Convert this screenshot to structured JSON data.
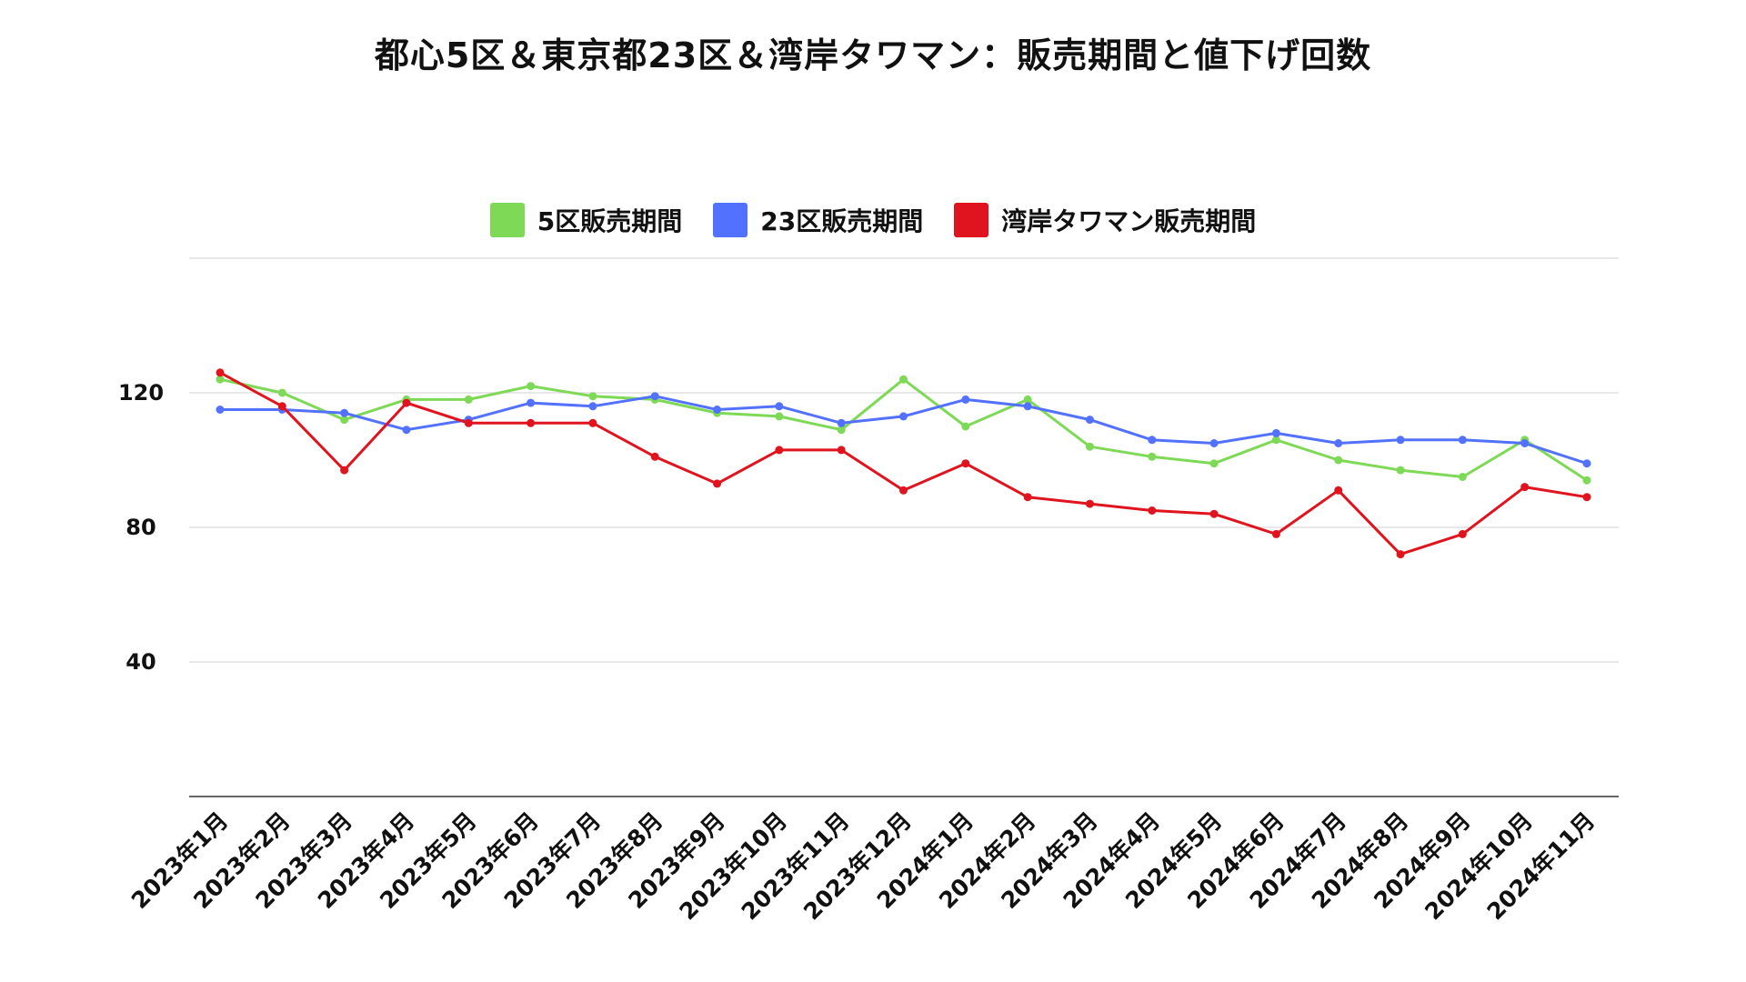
{
  "chart_data": {
    "type": "line",
    "title": "都心5区＆東京都23区＆湾岸タワマン：販売期間と値下げ回数",
    "xlabel": "",
    "ylabel": "",
    "categories": [
      "2023年1月",
      "2023年2月",
      "2023年3月",
      "2023年4月",
      "2023年5月",
      "2023年6月",
      "2023年7月",
      "2023年8月",
      "2023年9月",
      "2023年10月",
      "2023年11月",
      "2023年12月",
      "2024年1月",
      "2024年2月",
      "2024年3月",
      "2024年4月",
      "2024年5月",
      "2024年6月",
      "2024年7月",
      "2024年8月",
      "2024年9月",
      "2024年10月",
      "2024年11月"
    ],
    "ylim": [
      0,
      160
    ],
    "yticks": [
      40,
      80,
      120
    ],
    "yticks_labels": [
      "40",
      "80",
      "120"
    ],
    "grid": true,
    "legend_position": "top-center",
    "series": [
      {
        "name": "5区販売期間",
        "color": "#7ed957",
        "values": [
          124,
          120,
          112,
          118,
          118,
          122,
          119,
          118,
          114,
          113,
          109,
          124,
          110,
          118,
          104,
          101,
          99,
          106,
          100,
          97,
          95,
          106,
          94
        ]
      },
      {
        "name": "23区販売期間",
        "color": "#5271ff",
        "values": [
          115,
          115,
          114,
          109,
          112,
          117,
          116,
          119,
          115,
          116,
          111,
          113,
          118,
          116,
          112,
          106,
          105,
          108,
          105,
          106,
          106,
          105,
          99
        ]
      },
      {
        "name": "湾岸タワマン販売期間",
        "color": "#e0141e",
        "values": [
          126,
          116,
          97,
          117,
          111,
          111,
          111,
          101,
          93,
          103,
          103,
          91,
          99,
          89,
          87,
          85,
          84,
          78,
          91,
          72,
          78,
          92,
          89
        ]
      }
    ]
  }
}
